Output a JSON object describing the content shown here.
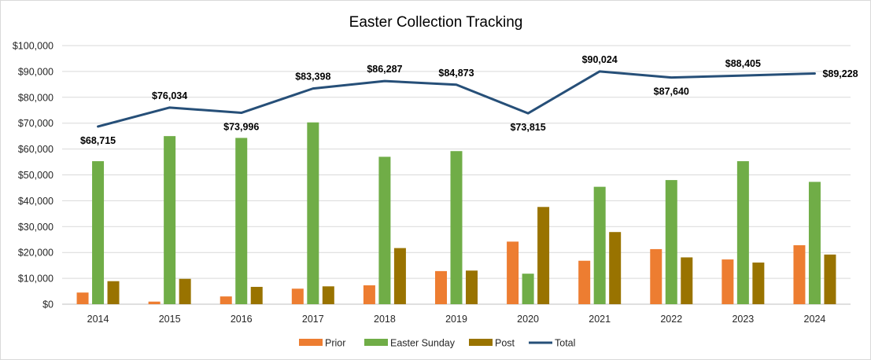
{
  "chart_data": {
    "type": "bar",
    "title": "Easter Collection Tracking",
    "xlabel": "",
    "ylabel": "",
    "ylim": [
      0,
      100000
    ],
    "grid": true,
    "legend_position": "bottom",
    "categories": [
      "2014",
      "2015",
      "2016",
      "2017",
      "2018",
      "2019",
      "2020",
      "2021",
      "2022",
      "2023",
      "2024"
    ],
    "y_ticks": [
      0,
      10000,
      20000,
      30000,
      40000,
      50000,
      60000,
      70000,
      80000,
      90000,
      100000
    ],
    "y_tick_labels": [
      "$0",
      "$10,000",
      "$20,000",
      "$30,000",
      "$40,000",
      "$50,000",
      "$60,000",
      "$70,000",
      "$80,000",
      "$90,000",
      "$100,000"
    ],
    "series": [
      {
        "name": "Prior",
        "type": "bar",
        "color": "#ed7d31",
        "values": [
          4500,
          1000,
          3000,
          6000,
          7300,
          12800,
          24200,
          16800,
          21300,
          17300,
          22800
        ]
      },
      {
        "name": "Easter Sunday",
        "type": "bar",
        "color": "#70ad47",
        "values": [
          55300,
          65000,
          64300,
          70300,
          57000,
          59200,
          11800,
          45400,
          48000,
          55300,
          47300
        ]
      },
      {
        "name": "Post",
        "type": "bar",
        "color": "#997300",
        "values": [
          8900,
          9800,
          6700,
          6900,
          21700,
          13000,
          37600,
          27900,
          18100,
          16100,
          19200
        ]
      },
      {
        "name": "Total",
        "type": "line",
        "color": "#264f78",
        "values": [
          68715,
          76034,
          73996,
          83398,
          86287,
          84873,
          73815,
          90024,
          87640,
          88405,
          89228
        ],
        "labels": [
          "$68,715",
          "$76,034",
          "$73,996",
          "$83,398",
          "$86,287",
          "$84,873",
          "$73,815",
          "$90,024",
          "$87,640",
          "$88,405",
          "$89,228"
        ],
        "label_positions": [
          "below",
          "above",
          "below",
          "above",
          "above",
          "above",
          "below",
          "above",
          "below",
          "above",
          "right"
        ]
      }
    ]
  }
}
